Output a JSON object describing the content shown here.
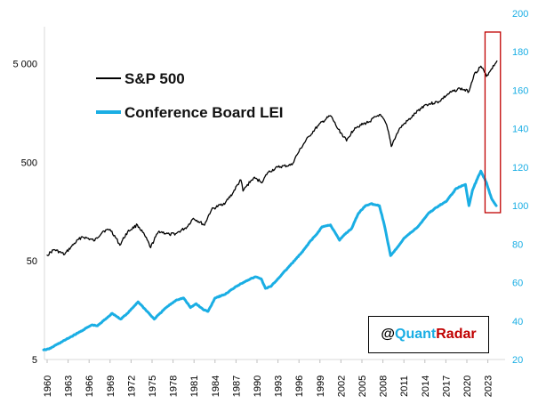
{
  "chart_data": {
    "type": "line",
    "x_ticks": [
      "1960",
      "1963",
      "1966",
      "1969",
      "1972",
      "1975",
      "1978",
      "1981",
      "1984",
      "1987",
      "1990",
      "1993",
      "1996",
      "1999",
      "2002",
      "2005",
      "2008",
      "2011",
      "2014",
      "2017",
      "2020",
      "2023"
    ],
    "y_left": {
      "scale": "log",
      "ticks": [
        "5",
        "50",
        "500",
        "5 000"
      ],
      "range": [
        5,
        10000
      ]
    },
    "y_right": {
      "scale": "linear",
      "ticks": [
        "20",
        "40",
        "60",
        "80",
        "100",
        "120",
        "140",
        "160",
        "180",
        "200"
      ],
      "range": [
        20,
        200
      ]
    },
    "series": [
      {
        "name": "S&P 500",
        "axis": "left",
        "color": "#000000",
        "points": [
          [
            1960.0,
            57
          ],
          [
            1961.0,
            65
          ],
          [
            1962.5,
            58
          ],
          [
            1963.5,
            70
          ],
          [
            1965.0,
            88
          ],
          [
            1966.8,
            80
          ],
          [
            1968.0,
            100
          ],
          [
            1969.0,
            104
          ],
          [
            1970.4,
            72
          ],
          [
            1971.5,
            98
          ],
          [
            1972.9,
            116
          ],
          [
            1974.8,
            68
          ],
          [
            1976.0,
            100
          ],
          [
            1977.5,
            92
          ],
          [
            1978.5,
            95
          ],
          [
            1980.0,
            110
          ],
          [
            1980.9,
            135
          ],
          [
            1982.5,
            115
          ],
          [
            1983.5,
            165
          ],
          [
            1985.5,
            195
          ],
          [
            1986.5,
            240
          ],
          [
            1987.7,
            330
          ],
          [
            1988.0,
            255
          ],
          [
            1989.5,
            345
          ],
          [
            1990.8,
            315
          ],
          [
            1991.5,
            390
          ],
          [
            1993.0,
            445
          ],
          [
            1995.0,
            470
          ],
          [
            1996.0,
            640
          ],
          [
            1997.5,
            920
          ],
          [
            1998.8,
            1180
          ],
          [
            2000.5,
            1480
          ],
          [
            2001.5,
            1100
          ],
          [
            2002.8,
            820
          ],
          [
            2004.0,
            1120
          ],
          [
            2006.0,
            1280
          ],
          [
            2007.5,
            1520
          ],
          [
            2008.4,
            1250
          ],
          [
            2009.2,
            720
          ],
          [
            2010.5,
            1120
          ],
          [
            2012.0,
            1400
          ],
          [
            2014.0,
            1900
          ],
          [
            2016.0,
            2050
          ],
          [
            2017.5,
            2500
          ],
          [
            2019.0,
            2800
          ],
          [
            2020.3,
            2600
          ],
          [
            2021.0,
            3800
          ],
          [
            2022.0,
            4700
          ],
          [
            2022.8,
            3700
          ],
          [
            2023.5,
            4400
          ],
          [
            2024.3,
            5300
          ]
        ]
      },
      {
        "name": "Conference Board LEI",
        "axis": "right",
        "color": "#1AAEE4",
        "points": [
          [
            1959.5,
            25
          ],
          [
            1960.3,
            25.5
          ],
          [
            1961.0,
            27
          ],
          [
            1962.5,
            30
          ],
          [
            1964.5,
            34
          ],
          [
            1966.4,
            38
          ],
          [
            1967.2,
            37.5
          ],
          [
            1969.3,
            44
          ],
          [
            1970.5,
            41
          ],
          [
            1971.5,
            44
          ],
          [
            1973.0,
            50
          ],
          [
            1974.3,
            45
          ],
          [
            1975.3,
            41
          ],
          [
            1977.0,
            47
          ],
          [
            1978.5,
            51
          ],
          [
            1979.5,
            52
          ],
          [
            1980.5,
            47
          ],
          [
            1981.3,
            49
          ],
          [
            1982.3,
            46
          ],
          [
            1983.0,
            45
          ],
          [
            1984.0,
            52
          ],
          [
            1985.5,
            54
          ],
          [
            1987.0,
            58
          ],
          [
            1988.5,
            61
          ],
          [
            1989.8,
            63
          ],
          [
            1990.6,
            62
          ],
          [
            1991.2,
            57
          ],
          [
            1992.0,
            58
          ],
          [
            1993.5,
            64
          ],
          [
            1995.0,
            70
          ],
          [
            1996.5,
            76
          ],
          [
            1997.5,
            81
          ],
          [
            1998.5,
            85
          ],
          [
            1999.3,
            89
          ],
          [
            2000.5,
            90
          ],
          [
            2001.8,
            82
          ],
          [
            2002.5,
            85
          ],
          [
            2003.5,
            88
          ],
          [
            2004.5,
            96
          ],
          [
            2005.5,
            100
          ],
          [
            2006.3,
            101
          ],
          [
            2007.5,
            100
          ],
          [
            2008.2,
            90
          ],
          [
            2009.1,
            74
          ],
          [
            2010.0,
            78
          ],
          [
            2011.0,
            83
          ],
          [
            2012.0,
            86
          ],
          [
            2013.0,
            89
          ],
          [
            2014.5,
            96
          ],
          [
            2016.0,
            100
          ],
          [
            2017.0,
            102
          ],
          [
            2018.5,
            109
          ],
          [
            2019.8,
            111
          ],
          [
            2020.3,
            100
          ],
          [
            2020.8,
            108
          ],
          [
            2021.5,
            114
          ],
          [
            2022.0,
            118
          ],
          [
            2022.8,
            112
          ],
          [
            2023.5,
            104
          ],
          [
            2024.2,
            100
          ]
        ]
      }
    ],
    "highlight_box": {
      "x_from": 2022.6,
      "x_to": 2024.8,
      "color": "#C00000"
    },
    "legend_placement": "top-left",
    "grid": false
  },
  "watermark": {
    "at": "@",
    "quant": "Quant",
    "radar": "Radar",
    "at_color": "#000000",
    "quant_color": "#1AAEE4",
    "radar_color": "#C00000"
  },
  "colors": {
    "left_axis_text": "#000000",
    "right_axis_text": "#1AAEE4",
    "x_axis_text": "#000000"
  }
}
